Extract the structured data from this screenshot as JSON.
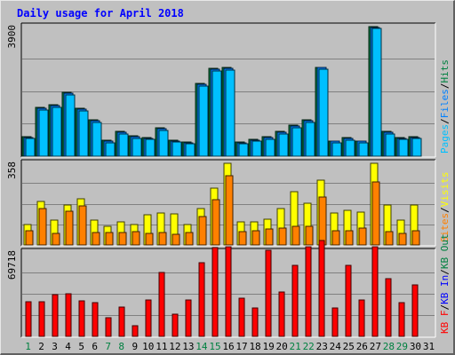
{
  "chart_data": {
    "type": "bar",
    "title": "Daily usage for April 2018",
    "days": [
      "1",
      "2",
      "3",
      "4",
      "5",
      "6",
      "7",
      "8",
      "9",
      "10",
      "11",
      "12",
      "13",
      "14",
      "15",
      "16",
      "17",
      "18",
      "19",
      "20",
      "21",
      "22",
      "23",
      "24",
      "25",
      "26",
      "27",
      "28",
      "29",
      "30",
      "31"
    ],
    "weekend_days": [
      "1",
      "7",
      "8",
      "14",
      "15",
      "21",
      "22",
      "28",
      "29"
    ],
    "panels": [
      {
        "id": "hits-files-pages",
        "scale_label": "3900",
        "ymax": 3900,
        "legend": [
          {
            "text": "Pages",
            "color": "#00c0ff"
          },
          {
            "text": "/",
            "color": "#000000"
          },
          {
            "text": "Files",
            "color": "#0080ff"
          },
          {
            "text": "/",
            "color": "#000000"
          },
          {
            "text": "Hits",
            "color": "#008040"
          }
        ],
        "series": [
          {
            "name": "Hits",
            "color": "#008040",
            "values": [
              580,
              1450,
              1530,
              1900,
              1420,
              1080,
              470,
              730,
              600,
              560,
              850,
              480,
              430,
              2170,
              2620,
              2650,
              430,
              510,
              580,
              730,
              930,
              1080,
              2660,
              460,
              560,
              460,
              3870,
              730,
              560,
              580,
              null
            ]
          },
          {
            "name": "Files",
            "color": "#0080ff",
            "values": [
              560,
              1430,
              1510,
              1880,
              1400,
              1060,
              450,
              710,
              580,
              540,
              830,
              460,
              410,
              2150,
              2600,
              2630,
              410,
              490,
              560,
              710,
              910,
              1060,
              2640,
              440,
              540,
              440,
              3850,
              710,
              540,
              560,
              null
            ]
          },
          {
            "name": "Pages",
            "color": "#00c0ff",
            "values": [
              520,
              1370,
              1450,
              1830,
              1350,
              1010,
              410,
              660,
              540,
              500,
              780,
              420,
              370,
              2090,
              2550,
              2580,
              380,
              450,
              510,
              660,
              860,
              1010,
              2590,
              400,
              490,
              400,
              3820,
              660,
              500,
              520,
              null
            ]
          }
        ]
      },
      {
        "id": "visits-sites",
        "scale_label": "358",
        "ymax": 358,
        "legend": [
          {
            "text": "Sites",
            "color": "#ff8000"
          },
          {
            "text": "/",
            "color": "#000000"
          },
          {
            "text": "Visits",
            "color": "#ffff00"
          }
        ],
        "series": [
          {
            "name": "Visits",
            "color": "#ffff00",
            "values": [
              88,
              190,
              108,
              172,
              200,
              108,
              80,
              100,
              88,
              130,
              140,
              136,
              90,
              156,
              245,
              356,
              100,
              100,
              110,
              156,
              230,
              180,
              280,
              140,
              150,
              143,
              356,
              172,
              108,
              174,
              null
            ]
          },
          {
            "name": "Sites",
            "color": "#ff8000",
            "values": [
              63,
              158,
              50,
              147,
              170,
              53,
              53,
              55,
              57,
              51,
              55,
              47,
              55,
              125,
              195,
              300,
              57,
              60,
              70,
              74,
              80,
              80,
              207,
              60,
              63,
              73,
              272,
              57,
              51,
              63,
              null
            ]
          }
        ]
      },
      {
        "id": "kbin-kbout-kbf",
        "scale_label": "69718",
        "ymax": 69718,
        "legend": [
          {
            "text": "KB F",
            "color": "#ff0000"
          },
          {
            "text": "/",
            "color": "#000000"
          },
          {
            "text": "KB In",
            "color": "#0000ff"
          },
          {
            "text": "/",
            "color": "#000000"
          },
          {
            "text": "KB Out",
            "color": "#008040"
          }
        ],
        "series": [
          {
            "name": "KB F",
            "color": "#ff0000",
            "values": [
              28500,
              28500,
              33800,
              34800,
              29200,
              27600,
              15300,
              24000,
              8800,
              29600,
              52000,
              17800,
              29600,
              60300,
              72300,
              73000,
              31200,
              22900,
              70100,
              36500,
              57900,
              73000,
              78400,
              23600,
              58200,
              30000,
              73000,
              46900,
              27500,
              42400,
              null
            ]
          }
        ]
      }
    ]
  }
}
